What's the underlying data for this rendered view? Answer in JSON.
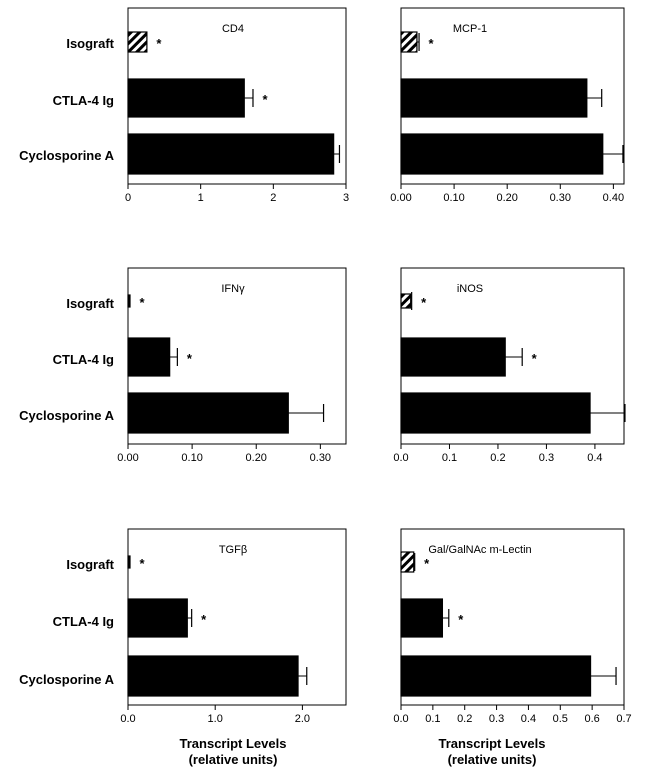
{
  "colors": {
    "bar": "#000000",
    "hatch": "#000000",
    "background": "#ffffff"
  },
  "footer": {
    "xlabel_line1": "Transcript Levels",
    "xlabel_line2": "(relative units)"
  },
  "chart_data": [
    {
      "type": "bar",
      "orientation": "horizontal",
      "title": "CD4",
      "categories": [
        "Isograft",
        "CTLA-4 Ig",
        "Cyclosporine A"
      ],
      "values": [
        0.26,
        1.6,
        2.83
      ],
      "errors": [
        0,
        0.12,
        0.08
      ],
      "significant": [
        true,
        true,
        false
      ],
      "patterns": [
        "hatch",
        "solid",
        "solid"
      ],
      "xlim": [
        0,
        3
      ],
      "xticks": [
        0,
        1,
        2,
        3
      ],
      "xtick_labels": [
        "0",
        "1",
        "2",
        "3"
      ]
    },
    {
      "type": "bar",
      "orientation": "horizontal",
      "title": "MCP-1",
      "categories": [
        "Isograft",
        "CTLA-4 Ig",
        "Cyclosporine A"
      ],
      "values": [
        0.03,
        0.35,
        0.38
      ],
      "errors": [
        0.004,
        0.028,
        0.038
      ],
      "significant": [
        true,
        false,
        false
      ],
      "patterns": [
        "hatch",
        "solid",
        "solid"
      ],
      "xlim": [
        0,
        0.42
      ],
      "xticks": [
        0,
        0.1,
        0.2,
        0.3,
        0.4
      ],
      "xtick_labels": [
        "0.00",
        "0.10",
        "0.20",
        "0.30",
        "0.40"
      ]
    },
    {
      "type": "bar",
      "orientation": "horizontal",
      "title": "IFNγ",
      "categories": [
        "Isograft",
        "CTLA-4 Ig",
        "Cyclosporine A"
      ],
      "values": [
        0.003,
        0.065,
        0.25
      ],
      "errors": [
        0,
        0.012,
        0.055
      ],
      "significant": [
        true,
        true,
        false
      ],
      "patterns": [
        "solid",
        "solid",
        "solid"
      ],
      "xlim": [
        0,
        0.34
      ],
      "xticks": [
        0,
        0.1,
        0.2,
        0.3
      ],
      "xtick_labels": [
        "0.00",
        "0.10",
        "0.20",
        "0.30"
      ]
    },
    {
      "type": "bar",
      "orientation": "horizontal",
      "title": "iNOS",
      "categories": [
        "Isograft",
        "CTLA-4 Ig",
        "Cyclosporine A"
      ],
      "values": [
        0.02,
        0.215,
        0.39
      ],
      "errors": [
        0.002,
        0.035,
        0.072
      ],
      "significant": [
        true,
        true,
        false
      ],
      "patterns": [
        "hatch",
        "solid",
        "solid"
      ],
      "xlim": [
        0,
        0.46
      ],
      "xticks": [
        0,
        0.1,
        0.2,
        0.3,
        0.4
      ],
      "xtick_labels": [
        "0.0",
        "0.1",
        "0.2",
        "0.3",
        "0.4"
      ]
    },
    {
      "type": "bar",
      "orientation": "horizontal",
      "title": "TGFβ",
      "categories": [
        "Isograft",
        "CTLA-4 Ig",
        "Cyclosporine A"
      ],
      "values": [
        0.02,
        0.68,
        1.95
      ],
      "errors": [
        0,
        0.05,
        0.1
      ],
      "significant": [
        true,
        true,
        false
      ],
      "patterns": [
        "solid",
        "solid",
        "solid"
      ],
      "xlim": [
        0,
        2.5
      ],
      "xticks": [
        0,
        1,
        2
      ],
      "xtick_labels": [
        "0.0",
        "1.0",
        "2.0"
      ]
    },
    {
      "type": "bar",
      "orientation": "horizontal",
      "title": "Gal/GalNAc m-Lectin",
      "categories": [
        "Isograft",
        "CTLA-4 Ig",
        "Cyclosporine A"
      ],
      "values": [
        0.04,
        0.13,
        0.595
      ],
      "errors": [
        0.003,
        0.02,
        0.08
      ],
      "significant": [
        true,
        true,
        false
      ],
      "patterns": [
        "hatch",
        "solid",
        "solid"
      ],
      "xlim": [
        0,
        0.7
      ],
      "xticks": [
        0,
        0.1,
        0.2,
        0.3,
        0.4,
        0.5,
        0.6,
        0.7
      ],
      "xtick_labels": [
        "0.0",
        "0.1",
        "0.2",
        "0.3",
        "0.4",
        "0.5",
        "0.6",
        "0.7"
      ]
    }
  ]
}
